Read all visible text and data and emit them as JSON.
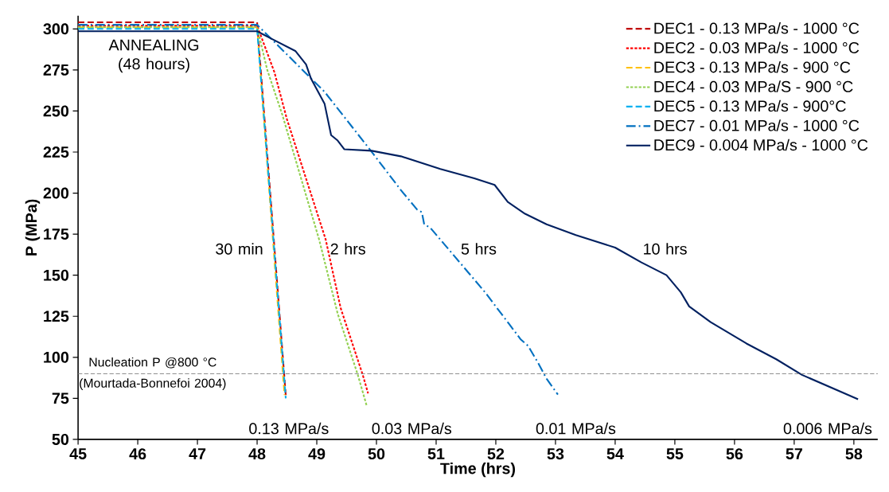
{
  "chart_data": {
    "type": "line",
    "xlabel": "Time (hrs)",
    "ylabel": "P (MPa)",
    "xlim": [
      45,
      58.4
    ],
    "xticks": [
      45,
      46,
      47,
      48,
      49,
      50,
      51,
      52,
      53,
      54,
      55,
      56,
      57,
      58
    ],
    "ylim": [
      50,
      308
    ],
    "yticks": [
      50,
      75,
      100,
      125,
      150,
      175,
      200,
      225,
      250,
      275,
      300
    ],
    "grid": false,
    "legend": "top right",
    "marker": "none",
    "series": [
      {
        "name": "DEC1 - 0.13 MPa/s - 1000 °C",
        "color": "#c00000",
        "line_style": "dashed",
        "x": [
          45,
          48,
          48.48
        ],
        "values": [
          304,
          304,
          77
        ]
      },
      {
        "name": "DEC2 - 0.03 MPa/s - 1000 °C",
        "color": "#ff0000",
        "line_style": "dotted",
        "x": [
          45,
          48,
          48.29,
          48.5,
          49.15,
          49.4,
          49.77,
          49.86
        ],
        "values": [
          302,
          302,
          273.6,
          245,
          171.6,
          130,
          89.3,
          78
        ]
      },
      {
        "name": "DEC3 - 0.13 MPa/s - 900 °C",
        "color": "#ffc000",
        "line_style": "dashed",
        "x": [
          45,
          48,
          48.46
        ],
        "values": [
          301,
          301,
          77
        ]
      },
      {
        "name": "DEC4 - 0.03 MPa/S - 900 °C",
        "color": "#92d050",
        "line_style": "dotted",
        "x": [
          45,
          48,
          48.17,
          48.42,
          49.04,
          49.35,
          49.69,
          49.84
        ],
        "values": [
          301,
          301,
          275,
          248,
          171.6,
          126.6,
          89,
          70
        ]
      },
      {
        "name": "DEC5 - 0.13 MPa/s - 900°C",
        "color": "#00b0f0",
        "line_style": "dashed",
        "x": [
          45,
          48,
          48.48
        ],
        "values": [
          300,
          300,
          75
        ]
      },
      {
        "name": "DEC7 - 0.01 MPa/s - 1000 °C",
        "color": "#0070c0",
        "line_style": "dashdot",
        "x": [
          45,
          48,
          49.13,
          49.88,
          50.41,
          50.68,
          50.76,
          50.8,
          50.9,
          51.82,
          52.22,
          52.42,
          52.54,
          52.71,
          52.85,
          53.04
        ],
        "values": [
          302.5,
          302.5,
          261.7,
          227,
          201.8,
          190,
          188.4,
          181,
          179,
          139.6,
          120.4,
          110.8,
          107,
          96.5,
          87,
          77.3
        ]
      },
      {
        "name": "DEC9 - 0.004 MPa/s - 1000 °C",
        "color": "#002060",
        "line_style": "solid",
        "x": [
          45,
          48,
          48.24,
          48.64,
          48.82,
          48.9,
          49.13,
          49.24,
          49.35,
          49.46,
          49.92,
          50.41,
          51.07,
          51.64,
          51.98,
          52.2,
          52.49,
          52.85,
          53.34,
          54.0,
          54.44,
          54.86,
          55.1,
          55.24,
          55.6,
          56.2,
          56.7,
          57.13,
          58.07
        ],
        "values": [
          298.6,
          298.6,
          294,
          286.6,
          278.4,
          270,
          254.5,
          235.3,
          232,
          226.7,
          225.8,
          222.4,
          214.7,
          209,
          205,
          194.6,
          187.4,
          181,
          174.5,
          166.8,
          157.8,
          150,
          139.6,
          131,
          121.4,
          108.4,
          98.8,
          89.3,
          74.4
        ]
      }
    ],
    "ref_lines": [
      {
        "axis": "y",
        "value": 90,
        "label": "Nucleation P @800 °C (Mourtada-Bonnefoi 2004)",
        "color": "#7f7f7f",
        "line_style": "dashed"
      }
    ],
    "annotations": [
      "ANNEALING (48 hours)",
      "30 min",
      "2 hrs",
      "5 hrs",
      "10 hrs",
      "0.13 MPa/s",
      "0.03 MPa/s",
      "0.01 MPa/s",
      "0.006 MPa/s"
    ]
  }
}
